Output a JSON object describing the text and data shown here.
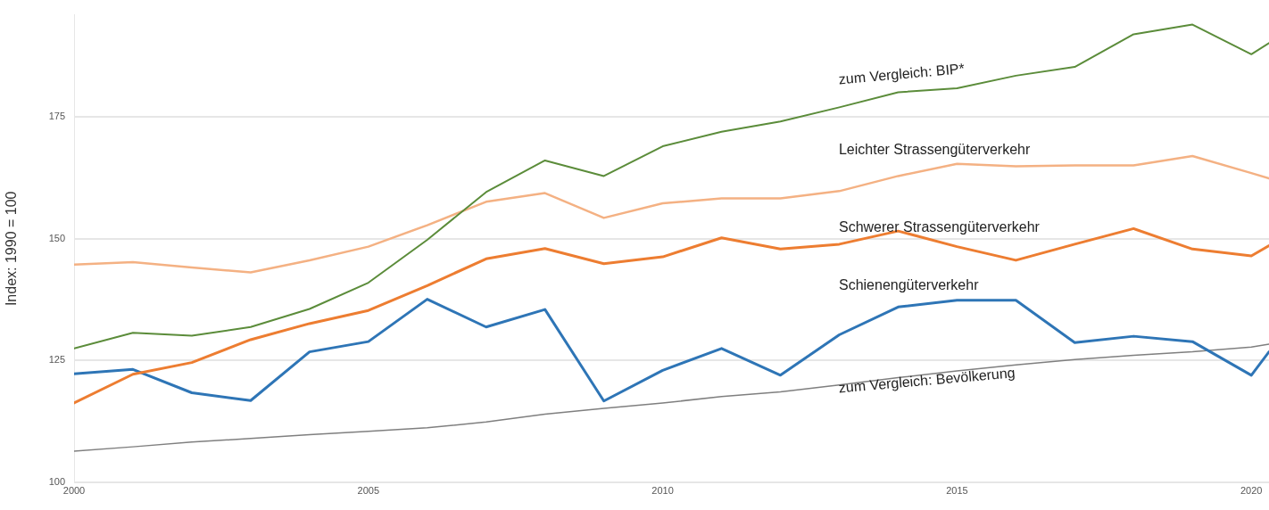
{
  "chart_data": {
    "type": "line",
    "ylabel": "Index: 1990 = 100",
    "x": [
      2000,
      2001,
      2002,
      2003,
      2004,
      2005,
      2006,
      2007,
      2008,
      2009,
      2010,
      2011,
      2012,
      2013,
      2014,
      2015,
      2016,
      2017,
      2018,
      2019,
      2020,
      2020.3
    ],
    "series": [
      {
        "name": "zum Vergleich: BIP*",
        "color": "#5b8c3a",
        "values": [
          127.5,
          130.7,
          130.1,
          131.9,
          135.6,
          141.0,
          149.8,
          159.6,
          166.1,
          162.9,
          169.0,
          172.0,
          174.1,
          177.0,
          180.1,
          180.9,
          183.5,
          185.3,
          192.0,
          194.0,
          187.9,
          190.2
        ]
      },
      {
        "name": "Leichter Strassengüterverkehr",
        "color": "#f4b183",
        "values": [
          144.7,
          145.2,
          144.1,
          143.1,
          145.6,
          148.4,
          152.8,
          157.6,
          159.4,
          154.3,
          157.3,
          158.3,
          158.3,
          159.8,
          162.9,
          165.4,
          164.9,
          165.1,
          165.1,
          167.0,
          163.5,
          162.4
        ]
      },
      {
        "name": "Schwerer Strassengüterverkehr",
        "color": "#ed7d31",
        "values": [
          116.3,
          122.2,
          124.6,
          129.3,
          132.6,
          135.3,
          140.4,
          145.9,
          148.0,
          144.9,
          146.3,
          150.2,
          147.9,
          148.9,
          151.6,
          148.4,
          145.6,
          148.9,
          152.1,
          147.9,
          146.5,
          148.6
        ]
      },
      {
        "name": "Schienengüterverkehr",
        "color": "#2e75b6",
        "values": [
          122.3,
          123.2,
          118.4,
          116.8,
          126.8,
          128.9,
          137.6,
          131.9,
          135.5,
          116.7,
          123.0,
          127.5,
          122.0,
          130.3,
          136.0,
          137.4,
          137.4,
          128.7,
          130.0,
          128.9,
          122.0,
          126.8
        ]
      },
      {
        "name": "zum Vergleich: Bevölkerung",
        "color": "#7f7f7f",
        "values": [
          106.4,
          107.3,
          108.3,
          109.0,
          109.8,
          110.5,
          111.2,
          112.4,
          114.0,
          115.2,
          116.3,
          117.6,
          118.6,
          120.0,
          121.5,
          122.9,
          124.1,
          125.2,
          126.1,
          126.8,
          127.8,
          128.4
        ]
      }
    ],
    "xlim": [
      2000,
      2020.3
    ],
    "xticks": [
      2000,
      2005,
      2010,
      2015,
      2020
    ],
    "ylim": [
      100,
      196
    ],
    "yticks": [
      100,
      125,
      150,
      175
    ],
    "grid": "y",
    "legend": false,
    "marker": "none",
    "line_style": "solid"
  }
}
